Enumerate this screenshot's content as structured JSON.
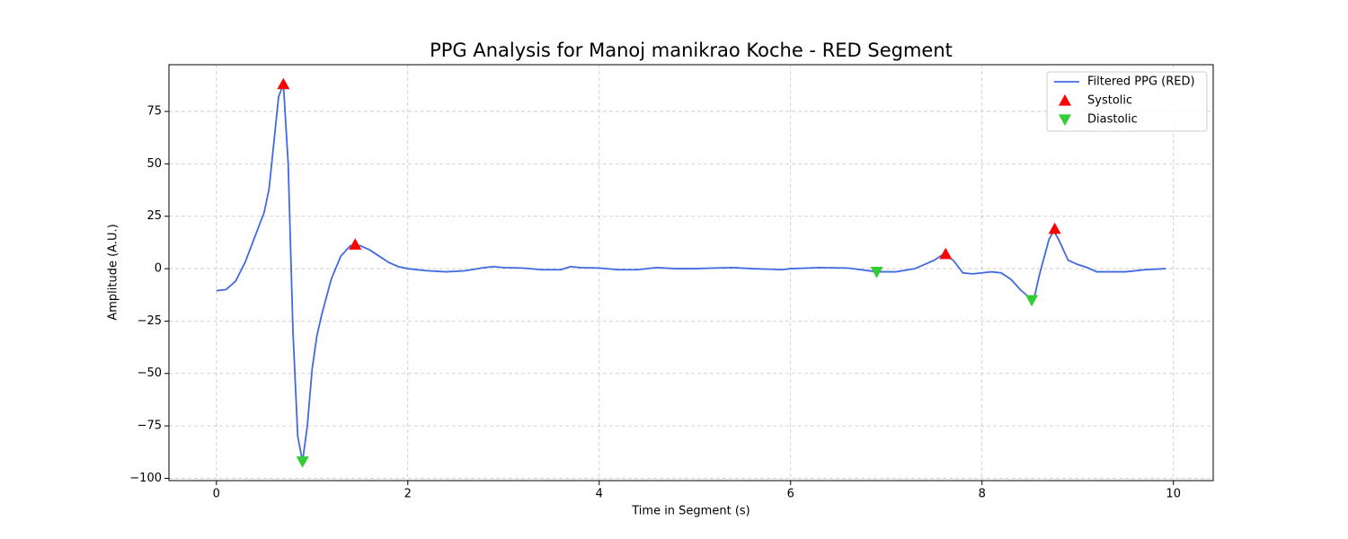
{
  "chart_data": {
    "type": "line",
    "title": "PPG Analysis for Manoj manikrao Koche - RED Segment",
    "xlabel": "Time in Segment (s)",
    "ylabel": "Amplitude (A.U.)",
    "series": [
      {
        "name": "Filtered PPG (RED)",
        "color": "#4169e1",
        "x": [
          0,
          0.1,
          0.2,
          0.3,
          0.4,
          0.5,
          0.55,
          0.6,
          0.65,
          0.7,
          0.75,
          0.8,
          0.85,
          0.9,
          0.95,
          1.0,
          1.05,
          1.1,
          1.2,
          1.3,
          1.4,
          1.5,
          1.6,
          1.7,
          1.8,
          1.9,
          2.0,
          2.2,
          2.4,
          2.6,
          2.8,
          2.9,
          3.0,
          3.2,
          3.4,
          3.6,
          3.7,
          3.8,
          4.0,
          4.2,
          4.4,
          4.6,
          4.8,
          5.0,
          5.2,
          5.4,
          5.6,
          5.8,
          5.9,
          6.0,
          6.3,
          6.6,
          6.9,
          7.1,
          7.3,
          7.5,
          7.6,
          7.7,
          7.8,
          7.9,
          8.0,
          8.1,
          8.2,
          8.3,
          8.4,
          8.5,
          8.55,
          8.6,
          8.7,
          8.75,
          8.8,
          8.9,
          9.0,
          9.1,
          9.2,
          9.3,
          9.5,
          9.7,
          9.92
        ],
        "values": [
          -10.5,
          -10,
          -6,
          3,
          15,
          27,
          38,
          60,
          82,
          88,
          50,
          -30,
          -80,
          -92,
          -75,
          -48,
          -32,
          -22,
          -5,
          6,
          11,
          11,
          9,
          6,
          3,
          1,
          0,
          -1,
          -1.5,
          -1,
          0.5,
          1,
          0.5,
          0.3,
          -0.5,
          -0.5,
          1,
          0.5,
          0.3,
          -0.5,
          -0.5,
          0.5,
          0,
          0,
          0.3,
          0.5,
          0,
          -0.3,
          -0.5,
          0,
          0.5,
          0.3,
          -1.5,
          -1.5,
          0,
          4,
          7,
          4,
          -2,
          -2.5,
          -2,
          -1.5,
          -2,
          -5,
          -10,
          -14,
          -13,
          -3,
          14,
          18,
          14,
          4,
          2,
          0.5,
          -1.5,
          -1.5,
          -1.5,
          -0.5,
          0
        ]
      },
      {
        "name": "Systolic",
        "color": "#ff0000",
        "marker": "^",
        "x": [
          0.7,
          1.45,
          7.62,
          8.76
        ],
        "values": [
          88,
          11.5,
          7,
          19
        ]
      },
      {
        "name": "Diastolic",
        "color": "#32cd32",
        "marker": "v",
        "x": [
          0.9,
          6.9,
          8.52
        ],
        "values": [
          -92,
          -1.5,
          -15
        ]
      }
    ],
    "xlim": [
      -0.496,
      10.416
    ],
    "ylim": [
      -101.1,
      97.3
    ],
    "xticks": [
      0,
      2,
      4,
      6,
      8,
      10
    ],
    "yticks": [
      {
        "value": -100,
        "label": "−100"
      },
      {
        "value": -75,
        "label": "−75"
      },
      {
        "value": -50,
        "label": "−50"
      },
      {
        "value": -25,
        "label": "−25"
      },
      0,
      25,
      50,
      75
    ],
    "grid": true,
    "legend": "upper right"
  }
}
